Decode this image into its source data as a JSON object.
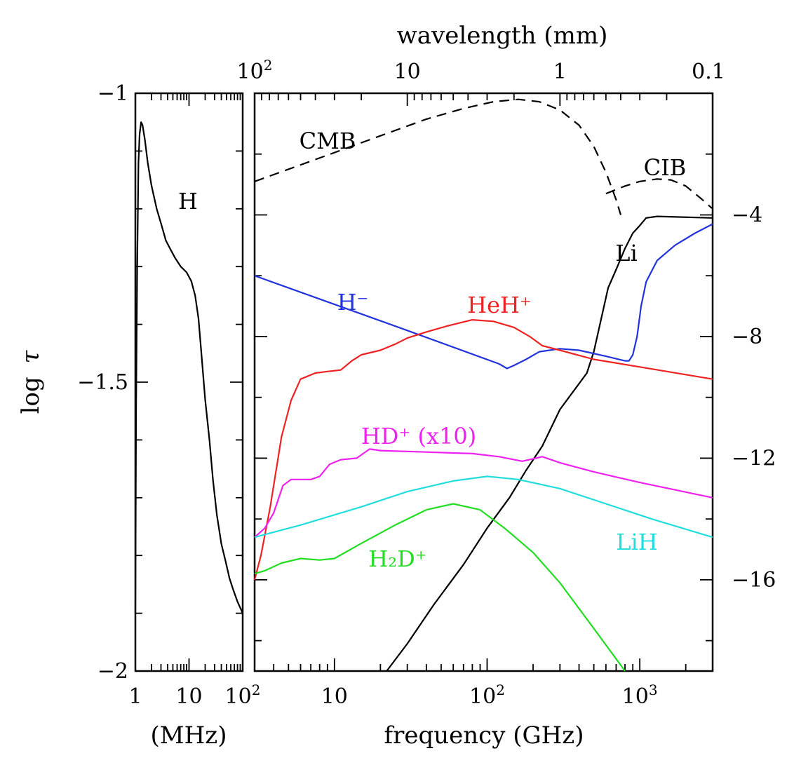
{
  "chart_data": [
    {
      "type": "line",
      "name": "left-panel",
      "x_scale": "log",
      "x_range": [
        1,
        100
      ],
      "xlabel": "(MHz)",
      "x_ticks": [
        {
          "v": 1,
          "base": "1",
          "sup": ""
        },
        {
          "v": 10,
          "base": "10",
          "sup": ""
        },
        {
          "v": 100,
          "base": "10",
          "sup": "2"
        }
      ],
      "ylabel_text": "log",
      "ylabel_symbol": "τ",
      "y_range": [
        -2,
        -1
      ],
      "y_ticks": [
        {
          "v": -1,
          "label": "−1"
        },
        {
          "v": -1.5,
          "label": "−1.5"
        },
        {
          "v": -2,
          "label": "−2"
        }
      ],
      "series": [
        {
          "name": "H",
          "label": "H",
          "color": "#000000",
          "points": [
            [
              1,
              -1.9
            ],
            [
              1.03,
              -1.55
            ],
            [
              1.08,
              -1.3
            ],
            [
              1.14,
              -1.12
            ],
            [
              1.2,
              -1.07
            ],
            [
              1.28,
              -1.05
            ],
            [
              1.36,
              -1.055
            ],
            [
              1.5,
              -1.08
            ],
            [
              1.7,
              -1.12
            ],
            [
              2,
              -1.16
            ],
            [
              2.5,
              -1.2
            ],
            [
              3,
              -1.225
            ],
            [
              3.7,
              -1.255
            ],
            [
              4.5,
              -1.27
            ],
            [
              5.5,
              -1.285
            ],
            [
              7,
              -1.3
            ],
            [
              9,
              -1.31
            ],
            [
              11,
              -1.325
            ],
            [
              13,
              -1.35
            ],
            [
              15,
              -1.39
            ],
            [
              17,
              -1.45
            ],
            [
              20,
              -1.53
            ],
            [
              24,
              -1.6
            ],
            [
              28,
              -1.67
            ],
            [
              33,
              -1.73
            ],
            [
              40,
              -1.78
            ],
            [
              48,
              -1.81
            ],
            [
              57,
              -1.84
            ],
            [
              67,
              -1.86
            ],
            [
              80,
              -1.88
            ],
            [
              100,
              -1.9
            ]
          ]
        }
      ]
    },
    {
      "type": "line",
      "name": "right-panel",
      "x_scale": "log",
      "x_range": [
        3,
        3000
      ],
      "xlabel": "frequency (GHz)",
      "x_ticks": [
        {
          "v": 10,
          "base": "10",
          "sup": ""
        },
        {
          "v": 100,
          "base": "10",
          "sup": "2"
        },
        {
          "v": 1000,
          "base": "10",
          "sup": "3"
        }
      ],
      "x2label": "wavelength (mm)",
      "x2_ticks": [
        {
          "v": 3,
          "base": "10",
          "sup": "2"
        },
        {
          "v": 30,
          "base": "10",
          "sup": ""
        },
        {
          "v": 300,
          "base": "1",
          "sup": ""
        },
        {
          "v": 3000,
          "base": "0.1",
          "sup": ""
        }
      ],
      "y_range": [
        -19,
        0
      ],
      "y_ticks": [
        {
          "v": -4,
          "label": "−4"
        },
        {
          "v": -8,
          "label": "−8"
        },
        {
          "v": -12,
          "label": "−12"
        },
        {
          "v": -16,
          "label": "−16"
        }
      ],
      "series": [
        {
          "name": "CMB",
          "label": "CMB",
          "color": "#000000",
          "dash": true,
          "points": [
            [
              3,
              -2.9
            ],
            [
              5,
              -2.5
            ],
            [
              10,
              -1.95
            ],
            [
              20,
              -1.4
            ],
            [
              40,
              -0.85
            ],
            [
              70,
              -0.5
            ],
            [
              110,
              -0.28
            ],
            [
              160,
              -0.2
            ],
            [
              220,
              -0.28
            ],
            [
              300,
              -0.55
            ],
            [
              400,
              -1.05
            ],
            [
              500,
              -1.75
            ],
            [
              600,
              -2.6
            ],
            [
              700,
              -3.5
            ],
            [
              750,
              -4.0
            ]
          ]
        },
        {
          "name": "CIB",
          "label": "CIB",
          "color": "#000000",
          "dash": true,
          "points": [
            [
              600,
              -3.3
            ],
            [
              800,
              -3.05
            ],
            [
              1000,
              -2.9
            ],
            [
              1300,
              -2.82
            ],
            [
              1600,
              -2.85
            ],
            [
              2000,
              -3.05
            ],
            [
              2500,
              -3.45
            ],
            [
              3000,
              -3.8
            ]
          ]
        },
        {
          "name": "Li",
          "label": "Li",
          "color": "#000000",
          "points": [
            [
              22,
              -19
            ],
            [
              30,
              -18.1
            ],
            [
              45,
              -16.8
            ],
            [
              70,
              -15.5
            ],
            [
              100,
              -14.3
            ],
            [
              140,
              -13.3
            ],
            [
              180,
              -12.4
            ],
            [
              230,
              -11.6
            ],
            [
              300,
              -10.4
            ],
            [
              380,
              -9.7
            ],
            [
              450,
              -9.2
            ],
            [
              500,
              -8.5
            ],
            [
              560,
              -7.4
            ],
            [
              620,
              -6.4
            ],
            [
              700,
              -5.8
            ],
            [
              800,
              -5.1
            ],
            [
              900,
              -4.6
            ],
            [
              1000,
              -4.35
            ],
            [
              1100,
              -4.1
            ],
            [
              1300,
              -4.05
            ],
            [
              3000,
              -4.1
            ]
          ]
        },
        {
          "name": "H-",
          "label": "H⁻",
          "color": "#2233dd",
          "points": [
            [
              3,
              -6.0
            ],
            [
              30,
              -7.8
            ],
            [
              120,
              -8.9
            ],
            [
              135,
              -9.05
            ],
            [
              150,
              -8.95
            ],
            [
              180,
              -8.75
            ],
            [
              220,
              -8.5
            ],
            [
              300,
              -8.4
            ],
            [
              400,
              -8.45
            ],
            [
              600,
              -8.65
            ],
            [
              800,
              -8.8
            ],
            [
              850,
              -8.8
            ],
            [
              900,
              -8.6
            ],
            [
              960,
              -8.0
            ],
            [
              1020,
              -7.0
            ],
            [
              1100,
              -6.2
            ],
            [
              1300,
              -5.5
            ],
            [
              1700,
              -5.0
            ],
            [
              2300,
              -4.6
            ],
            [
              3000,
              -4.3
            ]
          ]
        },
        {
          "name": "HeH+",
          "label": "HeH⁺",
          "color": "#ee2222",
          "points": [
            [
              3,
              -16
            ],
            [
              3.3,
              -15.2
            ],
            [
              3.8,
              -13.6
            ],
            [
              4.5,
              -11.3
            ],
            [
              5.2,
              -10.1
            ],
            [
              6,
              -9.4
            ],
            [
              7.5,
              -9.2
            ],
            [
              9,
              -9.15
            ],
            [
              11,
              -9.1
            ],
            [
              13,
              -8.8
            ],
            [
              15,
              -8.6
            ],
            [
              20,
              -8.45
            ],
            [
              25,
              -8.25
            ],
            [
              30,
              -8.05
            ],
            [
              40,
              -7.85
            ],
            [
              55,
              -7.65
            ],
            [
              80,
              -7.45
            ],
            [
              110,
              -7.5
            ],
            [
              150,
              -7.7
            ],
            [
              190,
              -8.0
            ],
            [
              230,
              -8.3
            ],
            [
              300,
              -8.45
            ],
            [
              500,
              -8.75
            ],
            [
              1000,
              -9.0
            ],
            [
              3000,
              -9.4
            ]
          ]
        },
        {
          "name": "HD+",
          "label": "HD⁺ (x10)",
          "color": "#ee22ee",
          "points": [
            [
              3,
              -14.6
            ],
            [
              3.5,
              -14.3
            ],
            [
              4,
              -13.8
            ],
            [
              4.6,
              -12.9
            ],
            [
              5.2,
              -12.7
            ],
            [
              6,
              -12.7
            ],
            [
              7,
              -12.7
            ],
            [
              8,
              -12.6
            ],
            [
              9.3,
              -12.2
            ],
            [
              11,
              -12.05
            ],
            [
              14,
              -12.0
            ],
            [
              17,
              -11.7
            ],
            [
              20,
              -11.75
            ],
            [
              40,
              -11.8
            ],
            [
              80,
              -11.85
            ],
            [
              120,
              -11.95
            ],
            [
              170,
              -12.1
            ],
            [
              230,
              -11.95
            ],
            [
              300,
              -12.15
            ],
            [
              500,
              -12.45
            ],
            [
              1000,
              -12.8
            ],
            [
              3000,
              -13.3
            ]
          ]
        },
        {
          "name": "LiH",
          "label": "LiH",
          "color": "#22dddd",
          "points": [
            [
              3,
              -14.6
            ],
            [
              6,
              -14.2
            ],
            [
              15,
              -13.6
            ],
            [
              30,
              -13.1
            ],
            [
              60,
              -12.75
            ],
            [
              100,
              -12.6
            ],
            [
              160,
              -12.7
            ],
            [
              300,
              -13.0
            ],
            [
              600,
              -13.5
            ],
            [
              1200,
              -14.0
            ],
            [
              3000,
              -14.6
            ]
          ]
        },
        {
          "name": "H2D+",
          "label": "H₂D⁺",
          "color": "#22dd22",
          "points": [
            [
              3,
              -15.8
            ],
            [
              3.5,
              -15.7
            ],
            [
              4.5,
              -15.45
            ],
            [
              6,
              -15.3
            ],
            [
              8,
              -15.35
            ],
            [
              10,
              -15.3
            ],
            [
              15,
              -14.8
            ],
            [
              25,
              -14.2
            ],
            [
              40,
              -13.7
            ],
            [
              60,
              -13.5
            ],
            [
              90,
              -13.7
            ],
            [
              130,
              -14.3
            ],
            [
              200,
              -15.1
            ],
            [
              300,
              -16.1
            ],
            [
              500,
              -17.6
            ],
            [
              700,
              -18.6
            ],
            [
              800,
              -19
            ]
          ]
        }
      ]
    }
  ]
}
